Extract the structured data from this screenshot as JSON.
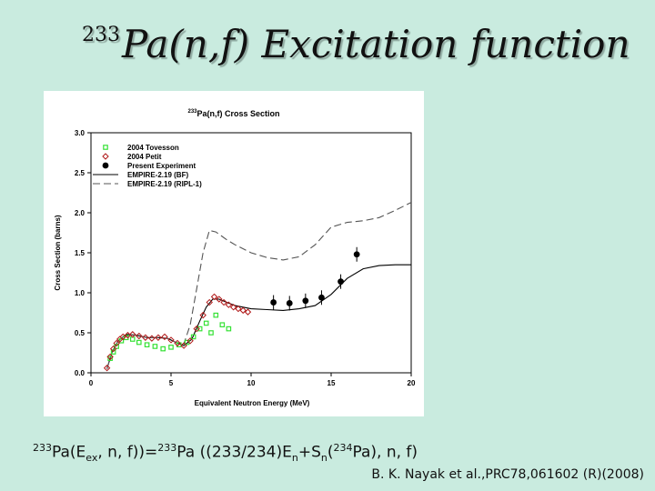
{
  "slide": {
    "title_sup": "233",
    "title_main": "Pa(n,f) Excitation function",
    "formula": {
      "sup_1": "233",
      "part_1": "Pa(E",
      "sub_1": "ex",
      "part_2": ", n, f))=",
      "sup_2": "233",
      "part_3": "Pa ((233/234)E",
      "sub_2": "n",
      "part_4": "+S",
      "sub_3": "n",
      "part_5": "(",
      "sup_3": "234",
      "part_6": "Pa), n, f)"
    },
    "citation": "B. K. Nayak et al.,PRC78,061602 (R)(2008)"
  },
  "chart_data": {
    "type": "scatter",
    "title_sup": "233",
    "title": "Pa(n,f) Cross Section",
    "xlabel": "Equivalent Neutron Energy (MeV)",
    "ylabel": "Cross Section (barns)",
    "xlim": [
      0,
      20
    ],
    "ylim": [
      0.0,
      3.0
    ],
    "xticks": [
      0,
      5,
      10,
      15,
      20
    ],
    "yticks": [
      0.0,
      0.5,
      1.0,
      1.5,
      2.0,
      2.5,
      3.0
    ],
    "grid": false,
    "legend_position": "top-left",
    "series": [
      {
        "name": "2004 Tovesson",
        "kind": "points",
        "marker": "square",
        "color": "#35e135",
        "points": [
          [
            1.2,
            0.18
          ],
          [
            1.4,
            0.26
          ],
          [
            1.6,
            0.33
          ],
          [
            1.9,
            0.4
          ],
          [
            2.2,
            0.44
          ],
          [
            2.6,
            0.42
          ],
          [
            3.0,
            0.38
          ],
          [
            3.5,
            0.35
          ],
          [
            4.0,
            0.33
          ],
          [
            4.5,
            0.3
          ],
          [
            5.0,
            0.32
          ],
          [
            5.5,
            0.35
          ],
          [
            6.0,
            0.38
          ],
          [
            6.4,
            0.45
          ],
          [
            6.8,
            0.55
          ],
          [
            7.2,
            0.62
          ],
          [
            7.5,
            0.5
          ],
          [
            7.8,
            0.72
          ],
          [
            8.2,
            0.6
          ],
          [
            8.6,
            0.55
          ]
        ]
      },
      {
        "name": "2004 Petit",
        "kind": "points",
        "marker": "diamond",
        "color": "#b01818",
        "points": [
          [
            1.0,
            0.06
          ],
          [
            1.2,
            0.2
          ],
          [
            1.4,
            0.3
          ],
          [
            1.6,
            0.37
          ],
          [
            1.8,
            0.42
          ],
          [
            2.0,
            0.45
          ],
          [
            2.3,
            0.47
          ],
          [
            2.6,
            0.48
          ],
          [
            3.0,
            0.46
          ],
          [
            3.4,
            0.44
          ],
          [
            3.8,
            0.43
          ],
          [
            4.2,
            0.44
          ],
          [
            4.6,
            0.45
          ],
          [
            5.0,
            0.41
          ],
          [
            5.4,
            0.37
          ],
          [
            5.8,
            0.34
          ],
          [
            6.2,
            0.4
          ],
          [
            6.6,
            0.55
          ],
          [
            7.0,
            0.72
          ],
          [
            7.4,
            0.88
          ],
          [
            7.7,
            0.95
          ],
          [
            8.0,
            0.92
          ],
          [
            8.3,
            0.88
          ],
          [
            8.6,
            0.85
          ],
          [
            8.9,
            0.82
          ],
          [
            9.2,
            0.8
          ],
          [
            9.5,
            0.78
          ],
          [
            9.8,
            0.76
          ]
        ]
      },
      {
        "name": "Present Experiment",
        "kind": "points",
        "marker": "circle",
        "color": "#000000",
        "points": [
          [
            11.4,
            0.88
          ],
          [
            12.4,
            0.87
          ],
          [
            13.4,
            0.9
          ],
          [
            14.4,
            0.94
          ],
          [
            15.6,
            1.14
          ],
          [
            16.6,
            1.48
          ]
        ]
      },
      {
        "name": "EMPIRE-2.19 (BF)",
        "kind": "line",
        "dash": "none",
        "color": "#000000",
        "points": [
          [
            1.0,
            0.05
          ],
          [
            1.3,
            0.25
          ],
          [
            1.7,
            0.4
          ],
          [
            2.2,
            0.48
          ],
          [
            2.8,
            0.47
          ],
          [
            3.5,
            0.44
          ],
          [
            4.2,
            0.44
          ],
          [
            4.8,
            0.43
          ],
          [
            5.3,
            0.38
          ],
          [
            5.8,
            0.34
          ],
          [
            6.3,
            0.42
          ],
          [
            6.8,
            0.65
          ],
          [
            7.2,
            0.82
          ],
          [
            7.6,
            0.92
          ],
          [
            8.0,
            0.92
          ],
          [
            8.5,
            0.88
          ],
          [
            9.0,
            0.84
          ],
          [
            10.0,
            0.8
          ],
          [
            11.0,
            0.79
          ],
          [
            12.0,
            0.78
          ],
          [
            13.0,
            0.8
          ],
          [
            14.0,
            0.84
          ],
          [
            15.0,
            0.98
          ],
          [
            16.0,
            1.18
          ],
          [
            17.0,
            1.3
          ],
          [
            18.0,
            1.34
          ],
          [
            19.0,
            1.35
          ],
          [
            20.0,
            1.35
          ]
        ]
      },
      {
        "name": "EMPIRE-2.19 (RIPL-1)",
        "kind": "line",
        "dash": "long",
        "color": "#555555",
        "points": [
          [
            1.0,
            0.05
          ],
          [
            1.3,
            0.25
          ],
          [
            1.7,
            0.4
          ],
          [
            2.2,
            0.48
          ],
          [
            2.8,
            0.47
          ],
          [
            3.5,
            0.44
          ],
          [
            4.2,
            0.44
          ],
          [
            4.8,
            0.43
          ],
          [
            5.3,
            0.38
          ],
          [
            5.8,
            0.36
          ],
          [
            6.2,
            0.6
          ],
          [
            6.6,
            1.05
          ],
          [
            7.0,
            1.5
          ],
          [
            7.4,
            1.78
          ],
          [
            7.8,
            1.76
          ],
          [
            8.5,
            1.66
          ],
          [
            9.0,
            1.6
          ],
          [
            10.0,
            1.5
          ],
          [
            11.0,
            1.44
          ],
          [
            12.0,
            1.41
          ],
          [
            13.0,
            1.45
          ],
          [
            14.0,
            1.6
          ],
          [
            15.0,
            1.82
          ],
          [
            16.0,
            1.88
          ],
          [
            17.0,
            1.9
          ],
          [
            18.0,
            1.94
          ],
          [
            19.0,
            2.03
          ],
          [
            20.0,
            2.13
          ]
        ]
      }
    ]
  }
}
